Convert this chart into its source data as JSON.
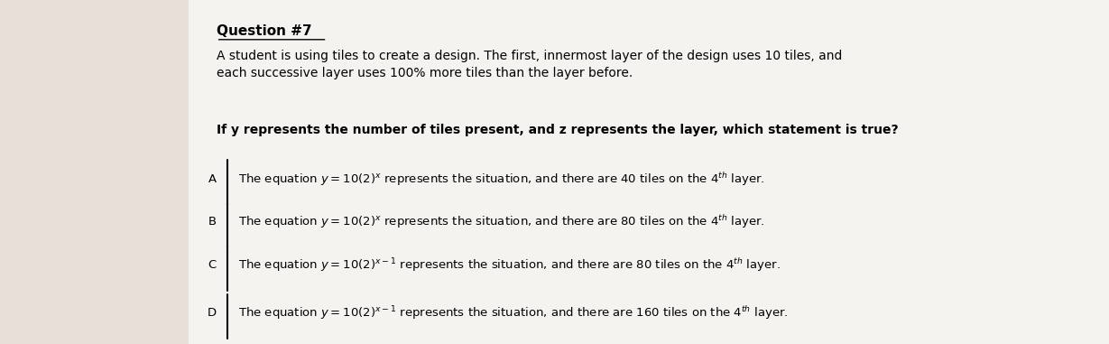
{
  "bg_color": "#e8e0d8",
  "paper_color": "#f5f3f0",
  "question_number": "Question #7",
  "paragraph1": "A student is using tiles to create a design. The first, innermost layer of the design uses 10 tiles, and\neach successive layer uses 100% more tiles than the layer before.",
  "paragraph2": "If y represents the number of tiles present, and z represents the layer, which statement is true?",
  "options": [
    {
      "letter": "A",
      "text": "The equation y = 10(2)ⁿ represents the situation, and there are 40 tiles on the 4ᵗʰ layer."
    },
    {
      "letter": "B",
      "text": "The equation y = 10(2)ⁿ represents the situation, and there are 80 tiles on the 4ᵗʰ layer."
    },
    {
      "letter": "C",
      "text": "The equation y = 10(2)ⁿ⁻¹ represents the situation, and there are 80 tiles on the 4ᵗʰ layer."
    },
    {
      "letter": "D",
      "text": "The equation y = 10(2)ⁿ⁻¹ represents the situation, and there are 160 tiles on the 4ᵗʰ layer."
    }
  ],
  "title_fontsize": 11,
  "body_fontsize": 10,
  "option_fontsize": 9.5
}
